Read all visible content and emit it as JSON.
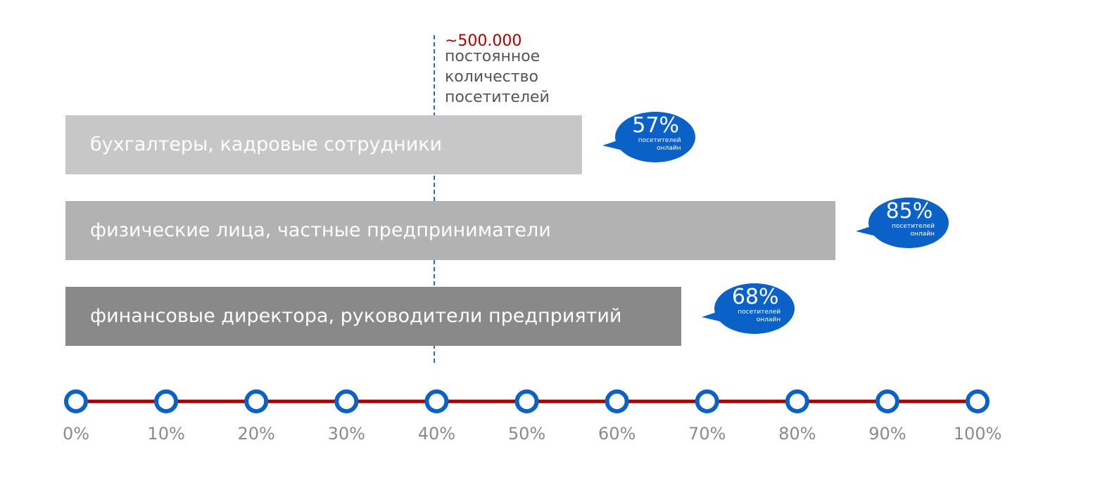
{
  "chart_data": {
    "type": "bar",
    "orientation": "horizontal",
    "categories": [
      "бухгалтеры, кадровые сотрудники",
      "физические  лица, частные предприниматели",
      "финансовые директора, руководители предприятий"
    ],
    "values": [
      57,
      85,
      68
    ],
    "value_labels": [
      "57%",
      "85%",
      "68%"
    ],
    "value_caption": [
      "посетителей",
      "онлайн"
    ],
    "colors": {
      "bars": [
        "#c6c7c6",
        "#b1b2b1",
        "#898989"
      ],
      "bubble": "#0a62c8",
      "axis_line": "#a80000",
      "axis_marker": "#0a62c8",
      "reference_line": "#2b6cc4",
      "reference_value": "#b00000"
    },
    "x_ticks": [
      "0%",
      "10%",
      "20%",
      "30%",
      "40%",
      "50%",
      "60%",
      "70%",
      "80%",
      "90%",
      "100%"
    ],
    "xlim": [
      0,
      100
    ],
    "reference": {
      "value_label": "~500.000",
      "text": [
        "постоянное",
        "количество",
        "посетителей"
      ]
    },
    "grid": false,
    "legend": "none"
  }
}
